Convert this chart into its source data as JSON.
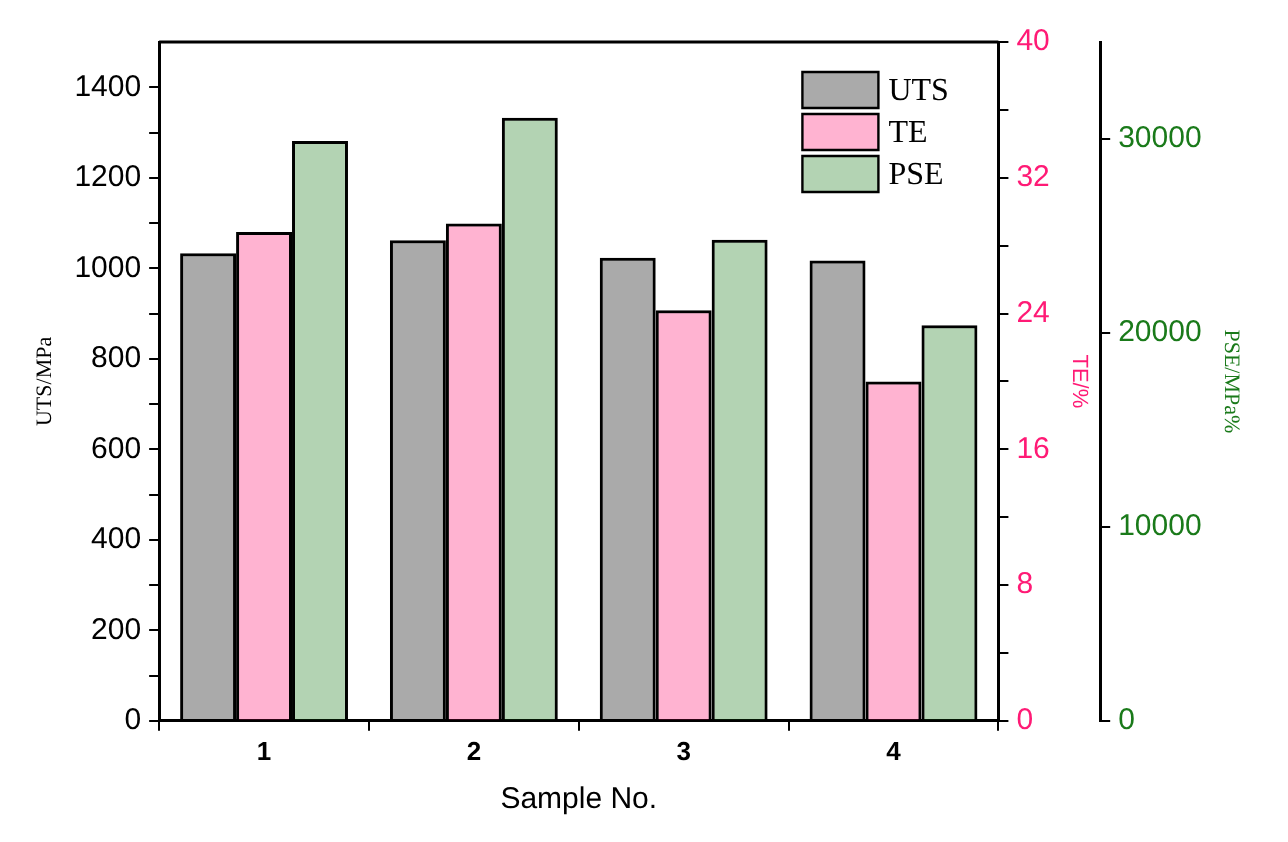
{
  "chart_data": {
    "type": "bar",
    "xlabel": "Sample No.",
    "ylabel": "UTS/MPa",
    "y2label": "TE/%",
    "y3label": "PSE/MPa%",
    "categories": [
      "1",
      "2",
      "3",
      "4"
    ],
    "series": [
      {
        "name": "UTS",
        "color": "#000000",
        "values": [
          1033,
          1062,
          1023,
          1017
        ]
      },
      {
        "name": "TE",
        "color": "#ff1a75",
        "axis": "y2",
        "values": [
          28.8,
          29.3,
          24.2,
          20.0
        ]
      },
      {
        "name": "PSE",
        "color": "#1a7a1a",
        "axis": "y3",
        "values": [
          29900,
          31100,
          24800,
          20400
        ]
      }
    ],
    "ylim": [
      0,
      1500
    ],
    "yticks": [
      0,
      {
        "value": 100,
        "label": null
      },
      200,
      {
        "value": 300,
        "label": null
      },
      400,
      {
        "value": 500,
        "label": null
      },
      600,
      {
        "value": 700,
        "label": null
      },
      800,
      {
        "value": 900,
        "label": null
      },
      1000,
      {
        "value": 1100,
        "label": null
      },
      1200,
      {
        "value": 1300,
        "label": null
      },
      1400
    ],
    "y2lim": [
      0,
      40
    ],
    "y2ticks": [
      0,
      {
        "value": 4,
        "label": null
      },
      8,
      {
        "value": 12,
        "label": null
      },
      16,
      {
        "value": 20,
        "label": null
      },
      24,
      {
        "value": 28,
        "label": null
      },
      32,
      {
        "value": 36,
        "label": null
      },
      40
    ],
    "y3lim": [
      0,
      35000
    ],
    "y3ticks": [
      0,
      10000,
      20000,
      30000
    ],
    "grid": false,
    "legend": "top right"
  }
}
